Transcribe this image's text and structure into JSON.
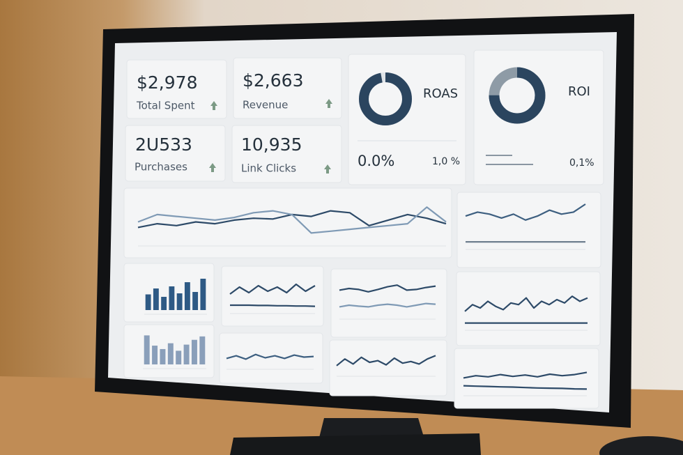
{
  "cards": [
    {
      "value": "$2,978",
      "label": "Total Spent"
    },
    {
      "value": "$2,663",
      "label": "Revenue"
    },
    {
      "value": "2U533",
      "label": "Purchases"
    },
    {
      "value": "10,935",
      "label": "Link Clicks"
    }
  ],
  "donuts": [
    {
      "title": "ROAS",
      "share": 97,
      "main": "0.0%",
      "side": "1,0 %"
    },
    {
      "title": "ROI",
      "share": 75,
      "side": "0,1%"
    }
  ],
  "line_charts": [
    {
      "ylim": [
        0,
        100
      ],
      "series": [
        {
          "color": "#2d4a68",
          "values": [
            35,
            45,
            40,
            50,
            45,
            55,
            60,
            58,
            70,
            65,
            80,
            75,
            40,
            55,
            70,
            60,
            45
          ]
        },
        {
          "color": "#7f9ab5",
          "values": [
            50,
            70,
            65,
            60,
            55,
            62,
            75,
            80,
            70,
            20,
            25,
            30,
            35,
            40,
            45,
            90,
            50
          ]
        }
      ]
    },
    {
      "ylim": [
        0,
        100
      ],
      "series": [
        {
          "color": "#3d5f80",
          "values": [
            70,
            80,
            75,
            65,
            75,
            60,
            70,
            85,
            75,
            80,
            100
          ]
        },
        {
          "color": "#6f7f8f",
          "values": [
            5,
            5,
            5,
            5,
            5,
            5,
            5,
            5,
            5,
            5,
            5
          ]
        }
      ]
    },
    {
      "ylim": [
        0,
        100
      ],
      "series": [
        {
          "color": "#2d4a68",
          "values": [
            50,
            75,
            55,
            80,
            60,
            75,
            55,
            85,
            60,
            80
          ]
        },
        {
          "color": "#2d4a68",
          "values": [
            10,
            10,
            10,
            9,
            9,
            8,
            8,
            7,
            7,
            6
          ]
        }
      ]
    },
    {
      "ylim": [
        0,
        100
      ],
      "series": [
        {
          "color": "#3d5f80",
          "values": [
            40,
            60,
            35,
            70,
            45,
            60,
            40,
            65,
            50,
            55
          ]
        }
      ]
    },
    {
      "ylim": [
        0,
        100
      ],
      "series": [
        {
          "color": "#2d4a68",
          "values": [
            70,
            75,
            72,
            65,
            72,
            80,
            85,
            70,
            72,
            78,
            82
          ]
        },
        {
          "color": "#7f9ab5",
          "values": [
            20,
            25,
            22,
            20,
            25,
            28,
            25,
            20,
            25,
            30,
            28
          ]
        }
      ]
    },
    {
      "ylim": [
        0,
        100
      ],
      "series": [
        {
          "color": "#2d4a68",
          "values": [
            30,
            70,
            40,
            80,
            50,
            60,
            35,
            75,
            45,
            55,
            40,
            70,
            90
          ]
        }
      ]
    },
    {
      "ylim": [
        0,
        100
      ],
      "series": [
        {
          "color": "#2d4a68",
          "values": [
            40,
            60,
            50,
            70,
            55,
            45,
            65,
            60,
            80,
            50,
            70,
            60,
            75,
            65,
            85,
            70,
            80
          ]
        },
        {
          "color": "#2d4a68",
          "values": [
            5,
            5,
            5,
            5,
            5,
            5,
            5,
            5,
            5,
            5,
            5,
            5,
            5,
            5,
            5,
            5,
            5
          ]
        }
      ]
    },
    {
      "ylim": [
        0,
        100
      ],
      "series": [
        {
          "color": "#2d4a68",
          "values": [
            55,
            65,
            60,
            70,
            62,
            68,
            60,
            72,
            65,
            70,
            80
          ]
        },
        {
          "color": "#2d4a68",
          "values": [
            20,
            18,
            17,
            15,
            14,
            12,
            10,
            9,
            8,
            6,
            5
          ]
        }
      ]
    }
  ],
  "bar_charts": [
    {
      "ylim": [
        0,
        100
      ],
      "color": "#2e5a85",
      "values": [
        45,
        62,
        38,
        68,
        48,
        80,
        52,
        90
      ]
    },
    {
      "ylim": [
        0,
        100
      ],
      "color": "#8a9fba",
      "values": [
        85,
        55,
        45,
        62,
        40,
        58,
        72,
        82
      ]
    }
  ]
}
